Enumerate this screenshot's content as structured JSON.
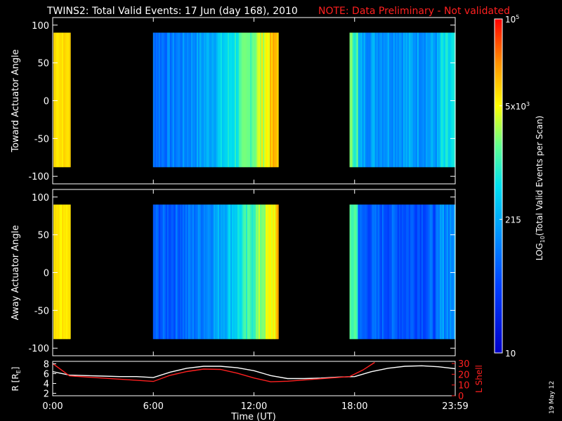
{
  "header": {
    "title": "TWINS2: Total Valid Events: 17 Jun (day 168), 2010",
    "note": "NOTE: Data Preliminary - Not validated"
  },
  "stamp": "19 May 12",
  "colors": {
    "background": "#000000",
    "axes": "#ffffff",
    "note": "#ff2020",
    "l_shell_line": "#ff2020",
    "r_line": "#ffffff"
  },
  "chart_data": [
    {
      "type": "heatmap",
      "ylabel": "Toward Actuator Angle",
      "ylim": [
        -110,
        110
      ],
      "yticks": [
        "100",
        "50",
        "0",
        "-50",
        "-100"
      ],
      "xlim": [
        0,
        24
      ],
      "data_y_range": [
        -88,
        90
      ],
      "blocks": [
        {
          "start": 0.05,
          "end": 1.05,
          "level": 0.78
        },
        {
          "start": 5.98,
          "end": 13.45,
          "level": 0.35
        },
        {
          "start": 17.7,
          "end": 24.0,
          "level": 0.38
        }
      ]
    },
    {
      "type": "heatmap",
      "ylabel": "Away Actuator Angle",
      "ylim": [
        -110,
        110
      ],
      "yticks": [
        "100",
        "50",
        "0",
        "-50",
        "-100"
      ],
      "xlim": [
        0,
        24
      ],
      "data_y_range": [
        -88,
        90
      ],
      "blocks": [
        {
          "start": 0.05,
          "end": 1.05,
          "level": 0.76
        },
        {
          "start": 5.98,
          "end": 13.45,
          "level": 0.3
        },
        {
          "start": 17.7,
          "end": 24.0,
          "level": 0.25
        }
      ]
    },
    {
      "type": "line",
      "xlabel": "Time (UT)",
      "ylabel_left": "R [R",
      "ylabel_left_sub": "E",
      "ylabel_left_end": "]",
      "ylabel_right": "L Shell",
      "xlim": [
        0,
        24
      ],
      "xticks": [
        "0:00",
        "6:00",
        "12:00",
        "18:00",
        "23:59"
      ],
      "ylim_left": [
        1.5,
        8.5
      ],
      "yticks_left": [
        "8",
        "6",
        "4",
        "2"
      ],
      "ylim_right": [
        0,
        32
      ],
      "yticks_right": [
        "30",
        "20",
        "10",
        "0"
      ],
      "series": [
        {
          "axis": "left",
          "color": "#ffffff",
          "x": [
            0,
            1,
            2,
            3,
            4,
            5,
            6,
            7,
            8,
            9,
            10,
            11,
            12,
            13,
            14,
            15,
            16,
            17,
            18,
            19,
            20,
            21,
            22,
            23,
            24
          ],
          "y": [
            6.4,
            5.7,
            5.6,
            5.5,
            5.4,
            5.4,
            5.2,
            6.3,
            7.1,
            7.5,
            7.5,
            7.2,
            6.6,
            5.6,
            5.0,
            5.0,
            5.1,
            5.3,
            5.4,
            6.4,
            7.1,
            7.5,
            7.6,
            7.4,
            7.0
          ]
        },
        {
          "axis": "right",
          "color": "#ff2020",
          "x": [
            0,
            1,
            6,
            7,
            8,
            9,
            10,
            11,
            12,
            13,
            14,
            17.7,
            18.5,
            19.2
          ],
          "y": [
            30,
            18.5,
            13.3,
            19.0,
            22.5,
            24.8,
            24.5,
            21.0,
            16.5,
            13.0,
            13.5,
            17.8,
            24.0,
            31.0
          ]
        }
      ]
    }
  ],
  "colorbar": {
    "label_prefix": "LOG",
    "label_sub": "10",
    "label_rest": "(Total Valid Events per Scan)",
    "ticks": [
      {
        "base": "10",
        "exp": "5",
        "level": 1.0
      },
      {
        "base": "5x10",
        "exp": "3",
        "level": 0.74
      },
      {
        "base": "215",
        "exp": "",
        "level": 0.4
      },
      {
        "base": "10",
        "exp": "",
        "level": 0.0
      }
    ]
  }
}
